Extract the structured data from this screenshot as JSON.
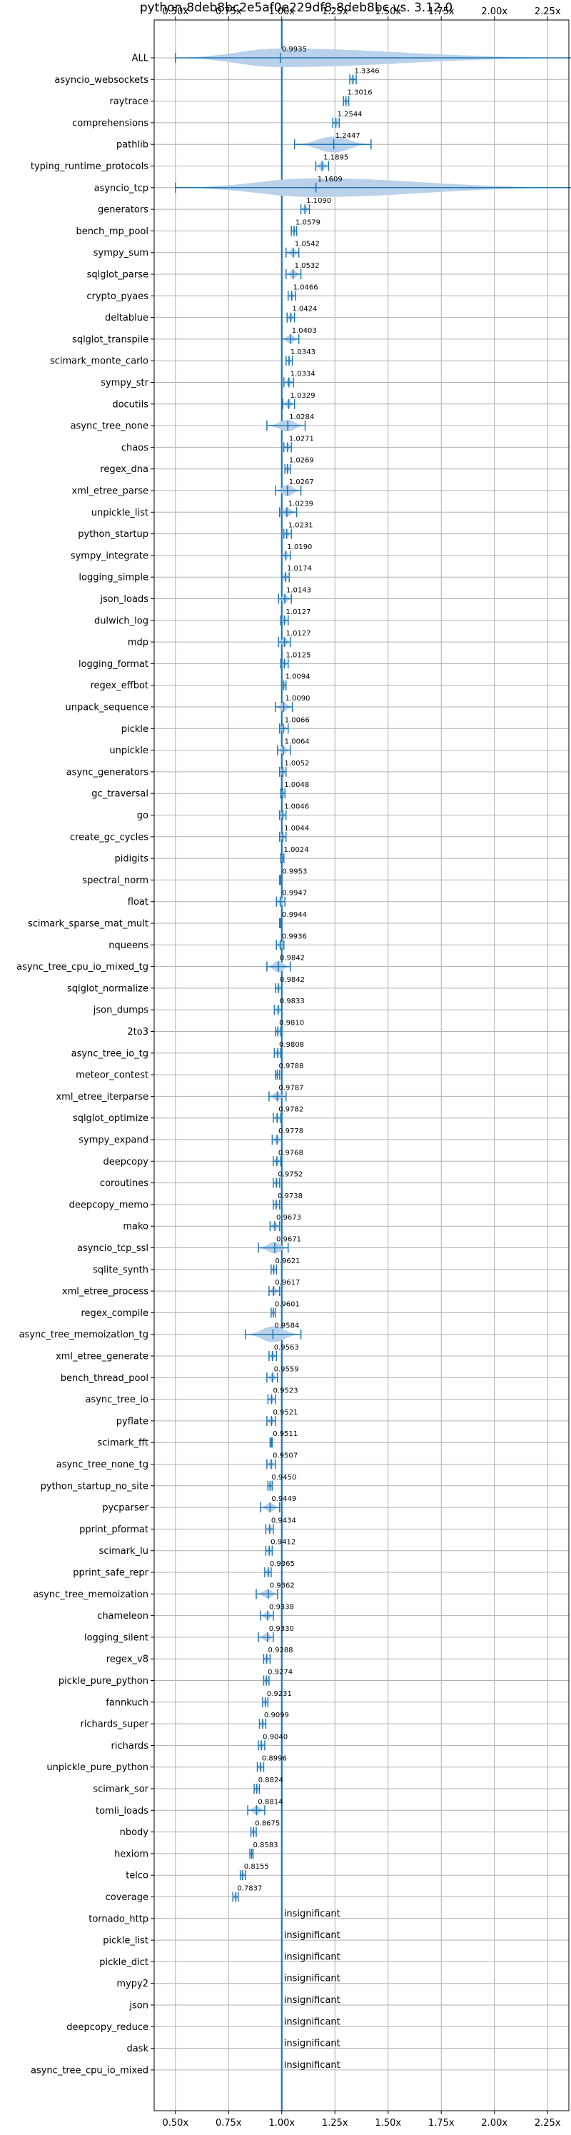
{
  "chart_data": {
    "type": "violin",
    "title": "python-8deb8bc2e5af0e229df8-8deb8bc vs. 3.12.0",
    "xlabel": "",
    "ylabel": "",
    "xlim": [
      0.4,
      2.35
    ],
    "xticks": [
      0.5,
      0.75,
      1.0,
      1.25,
      1.5,
      1.75,
      2.0,
      2.25
    ],
    "xtick_labels": [
      "0.50x",
      "0.75x",
      "1.00x",
      "1.25x",
      "1.50x",
      "1.75x",
      "2.00x",
      "2.25x"
    ],
    "reference_line": 1.0,
    "grid": true,
    "insignificant_text": "insignificant",
    "categories": [
      "ALL",
      "asyncio_websockets",
      "raytrace",
      "comprehensions",
      "pathlib",
      "typing_runtime_protocols",
      "asyncio_tcp",
      "generators",
      "bench_mp_pool",
      "sympy_sum",
      "sqlglot_parse",
      "crypto_pyaes",
      "deltablue",
      "sqlglot_transpile",
      "scimark_monte_carlo",
      "sympy_str",
      "docutils",
      "async_tree_none",
      "chaos",
      "regex_dna",
      "xml_etree_parse",
      "unpickle_list",
      "python_startup",
      "sympy_integrate",
      "logging_simple",
      "json_loads",
      "dulwich_log",
      "mdp",
      "logging_format",
      "regex_effbot",
      "unpack_sequence",
      "pickle",
      "unpickle",
      "async_generators",
      "gc_traversal",
      "go",
      "create_gc_cycles",
      "pidigits",
      "spectral_norm",
      "float",
      "scimark_sparse_mat_mult",
      "nqueens",
      "async_tree_cpu_io_mixed_tg",
      "sqlglot_normalize",
      "json_dumps",
      "2to3",
      "async_tree_io_tg",
      "meteor_contest",
      "xml_etree_iterparse",
      "sqlglot_optimize",
      "sympy_expand",
      "deepcopy",
      "coroutines",
      "deepcopy_memo",
      "mako",
      "asyncio_tcp_ssl",
      "sqlite_synth",
      "xml_etree_process",
      "regex_compile",
      "async_tree_memoization_tg",
      "xml_etree_generate",
      "bench_thread_pool",
      "async_tree_io",
      "pyflate",
      "scimark_fft",
      "async_tree_none_tg",
      "python_startup_no_site",
      "pycparser",
      "pprint_pformat",
      "scimark_lu",
      "pprint_safe_repr",
      "async_tree_memoization",
      "chameleon",
      "logging_silent",
      "regex_v8",
      "pickle_pure_python",
      "fannkuch",
      "richards_super",
      "richards",
      "unpickle_pure_python",
      "scimark_sor",
      "tomli_loads",
      "nbody",
      "hexiom",
      "telco",
      "coverage",
      "tornado_http",
      "pickle_list",
      "pickle_dict",
      "mypy2",
      "json",
      "deepcopy_reduce",
      "dask",
      "async_tree_cpu_io_mixed"
    ],
    "values": [
      0.9935,
      1.3346,
      1.3016,
      1.2544,
      1.2447,
      1.1895,
      1.1609,
      1.109,
      1.0579,
      1.0542,
      1.0532,
      1.0466,
      1.0424,
      1.0403,
      1.0343,
      1.0334,
      1.0329,
      1.0284,
      1.0271,
      1.0269,
      1.0267,
      1.0239,
      1.0231,
      1.019,
      1.0174,
      1.0143,
      1.0127,
      1.0127,
      1.0125,
      1.0094,
      1.009,
      1.0066,
      1.0064,
      1.0052,
      1.0048,
      1.0046,
      1.0044,
      1.0024,
      0.9953,
      0.9947,
      0.9944,
      0.9936,
      0.9842,
      0.9842,
      0.9833,
      0.981,
      0.9808,
      0.9788,
      0.9787,
      0.9782,
      0.9778,
      0.9768,
      0.9752,
      0.9738,
      0.9673,
      0.9671,
      0.9621,
      0.9617,
      0.9601,
      0.9584,
      0.9563,
      0.9559,
      0.9523,
      0.9521,
      0.9511,
      0.9507,
      0.945,
      0.9449,
      0.9434,
      0.9412,
      0.9365,
      0.9362,
      0.9338,
      0.933,
      0.9288,
      0.9274,
      0.9231,
      0.9099,
      0.904,
      0.8996,
      0.8824,
      0.8814,
      0.8675,
      0.8583,
      0.8155,
      0.7837,
      null,
      null,
      null,
      null,
      null,
      null,
      null,
      null
    ],
    "value_labels": [
      "0.9935",
      "1.3346",
      "1.3016",
      "1.2544",
      "1.2447",
      "1.1895",
      "1.1609",
      "1.1090",
      "1.0579",
      "1.0542",
      "1.0532",
      "1.0466",
      "1.0424",
      "1.0403",
      "1.0343",
      "1.0334",
      "1.0329",
      "1.0284",
      "1.0271",
      "1.0269",
      "1.0267",
      "1.0239",
      "1.0231",
      "1.0190",
      "1.0174",
      "1.0143",
      "1.0127",
      "1.0127",
      "1.0125",
      "1.0094",
      "1.0090",
      "1.0066",
      "1.0064",
      "1.0052",
      "1.0048",
      "1.0046",
      "1.0044",
      "1.0024",
      "0.9953",
      "0.9947",
      "0.9944",
      "0.9936",
      "0.9842",
      "0.9842",
      "0.9833",
      "0.9810",
      "0.9808",
      "0.9788",
      "0.9787",
      "0.9782",
      "0.9778",
      "0.9768",
      "0.9752",
      "0.9738",
      "0.9673",
      "0.9671",
      "0.9621",
      "0.9617",
      "0.9601",
      "0.9584",
      "0.9563",
      "0.9559",
      "0.9523",
      "0.9521",
      "0.9511",
      "0.9507",
      "0.9450",
      "0.9449",
      "0.9434",
      "0.9412",
      "0.9365",
      "0.9362",
      "0.9338",
      "0.9330",
      "0.9288",
      "0.9274",
      "0.9231",
      "0.9099",
      "0.9040",
      "0.8996",
      "0.8824",
      "0.8814",
      "0.8675",
      "0.8583",
      "0.8155",
      "0.7837",
      "",
      "",
      "",
      "",
      "",
      "",
      "",
      ""
    ],
    "ranges": [
      [
        0.5,
        2.38
      ],
      [
        1.32,
        1.35
      ],
      [
        1.29,
        1.315
      ],
      [
        1.24,
        1.27
      ],
      [
        1.06,
        1.42
      ],
      [
        1.16,
        1.22
      ],
      [
        0.5,
        2.38
      ],
      [
        1.09,
        1.13
      ],
      [
        1.045,
        1.07
      ],
      [
        1.02,
        1.08
      ],
      [
        1.02,
        1.09
      ],
      [
        1.03,
        1.065
      ],
      [
        1.025,
        1.06
      ],
      [
        1.0,
        1.08
      ],
      [
        1.02,
        1.05
      ],
      [
        1.01,
        1.055
      ],
      [
        1.005,
        1.06
      ],
      [
        0.93,
        1.11
      ],
      [
        1.01,
        1.045
      ],
      [
        1.015,
        1.04
      ],
      [
        0.97,
        1.09
      ],
      [
        0.99,
        1.07
      ],
      [
        1.01,
        1.045
      ],
      [
        1.0,
        1.04
      ],
      [
        1.0,
        1.035
      ],
      [
        0.985,
        1.045
      ],
      [
        0.995,
        1.03
      ],
      [
        0.985,
        1.04
      ],
      [
        0.995,
        1.03
      ],
      [
        1.0,
        1.02
      ],
      [
        0.97,
        1.05
      ],
      [
        0.99,
        1.03
      ],
      [
        0.98,
        1.04
      ],
      [
        0.99,
        1.02
      ],
      [
        0.995,
        1.015
      ],
      [
        0.99,
        1.02
      ],
      [
        0.99,
        1.02
      ],
      [
        0.995,
        1.01
      ],
      [
        0.99,
        1.0
      ],
      [
        0.975,
        1.015
      ],
      [
        0.99,
        1.0
      ],
      [
        0.975,
        1.01
      ],
      [
        0.93,
        1.04
      ],
      [
        0.97,
        1.0
      ],
      [
        0.965,
        1.0
      ],
      [
        0.97,
        0.995
      ],
      [
        0.965,
        0.995
      ],
      [
        0.97,
        0.99
      ],
      [
        0.94,
        1.02
      ],
      [
        0.96,
        0.995
      ],
      [
        0.955,
        1.0
      ],
      [
        0.96,
        0.995
      ],
      [
        0.96,
        0.99
      ],
      [
        0.96,
        0.99
      ],
      [
        0.945,
        0.99
      ],
      [
        0.89,
        1.03
      ],
      [
        0.95,
        0.975
      ],
      [
        0.94,
        0.99
      ],
      [
        0.95,
        0.97
      ],
      [
        0.83,
        1.09
      ],
      [
        0.94,
        0.975
      ],
      [
        0.93,
        0.98
      ],
      [
        0.935,
        0.97
      ],
      [
        0.93,
        0.97
      ],
      [
        0.945,
        0.955
      ],
      [
        0.93,
        0.97
      ],
      [
        0.935,
        0.955
      ],
      [
        0.9,
        0.99
      ],
      [
        0.925,
        0.96
      ],
      [
        0.925,
        0.955
      ],
      [
        0.92,
        0.95
      ],
      [
        0.88,
        0.98
      ],
      [
        0.9,
        0.96
      ],
      [
        0.89,
        0.96
      ],
      [
        0.915,
        0.945
      ],
      [
        0.915,
        0.94
      ],
      [
        0.91,
        0.935
      ],
      [
        0.895,
        0.925
      ],
      [
        0.89,
        0.92
      ],
      [
        0.885,
        0.915
      ],
      [
        0.87,
        0.895
      ],
      [
        0.84,
        0.92
      ],
      [
        0.855,
        0.88
      ],
      [
        0.85,
        0.865
      ],
      [
        0.805,
        0.83
      ],
      [
        0.77,
        0.795
      ],
      [
        null,
        null
      ],
      [
        null,
        null
      ],
      [
        null,
        null
      ],
      [
        null,
        null
      ],
      [
        null,
        null
      ],
      [
        null,
        null
      ],
      [
        null,
        null
      ],
      [
        null,
        null
      ]
    ]
  },
  "colors": {
    "violin_fill": "#b9d1ea",
    "line": "#1f77b4",
    "grid": "#b0b0b0",
    "text": "#000000"
  }
}
